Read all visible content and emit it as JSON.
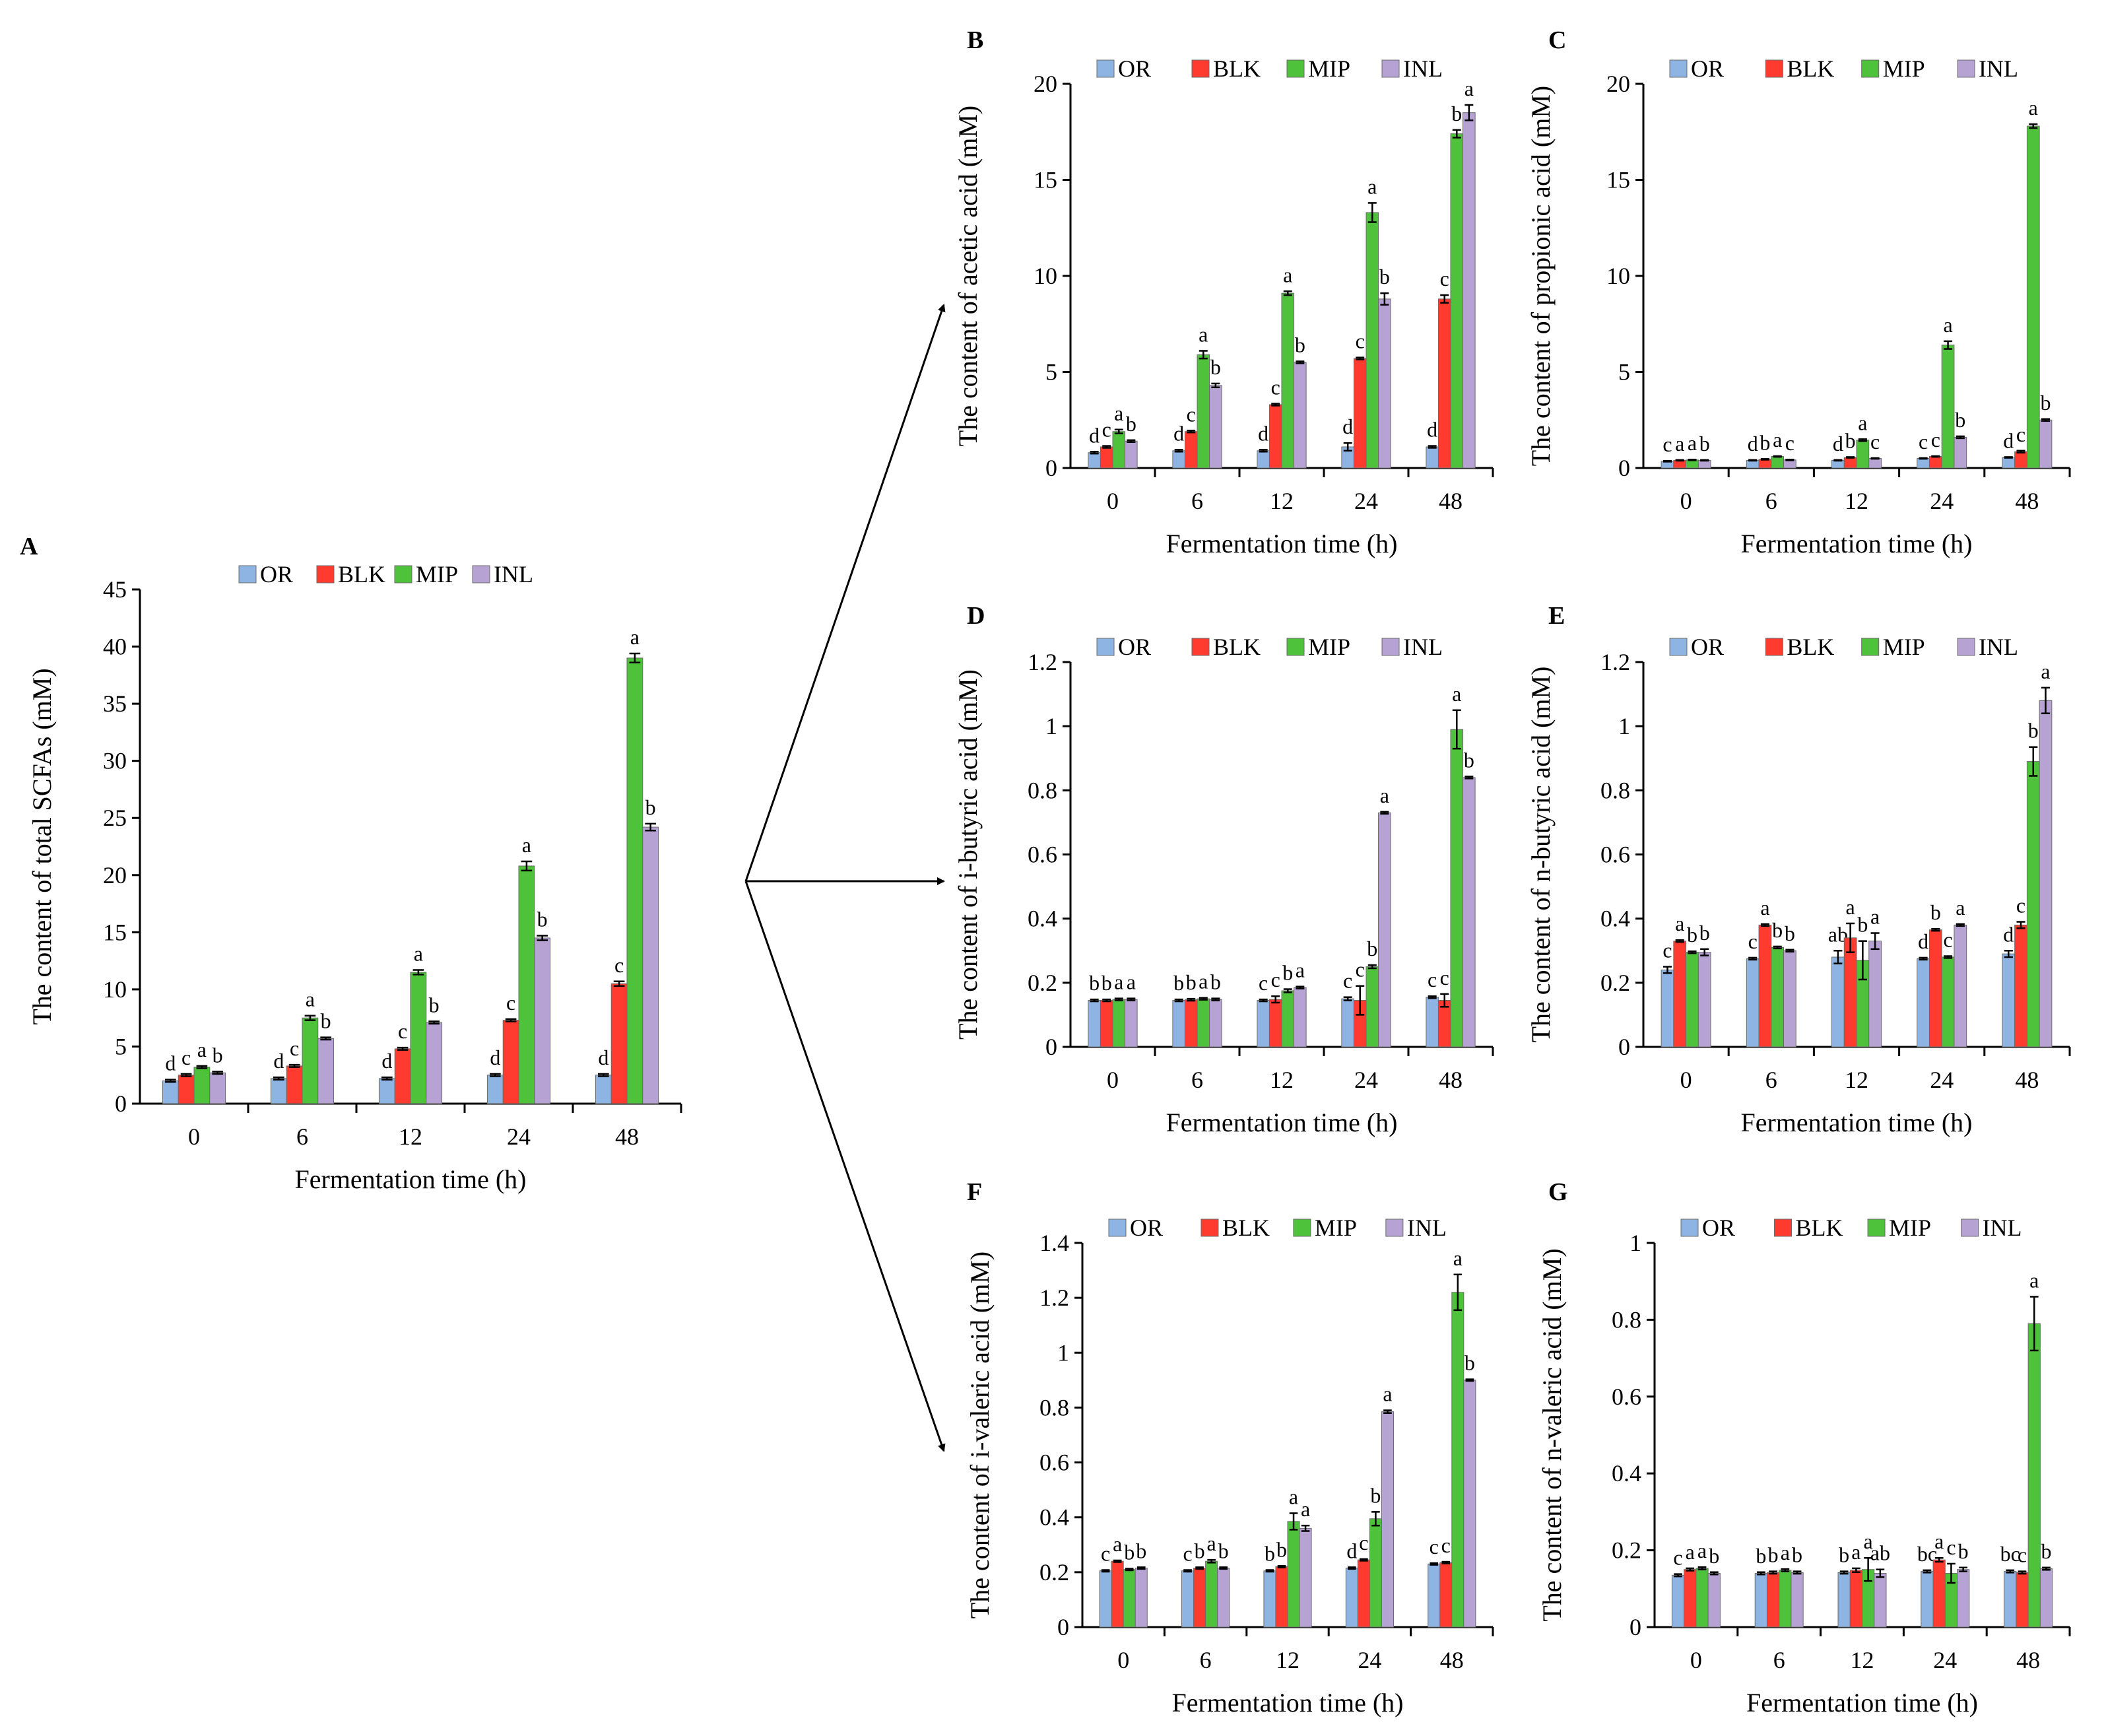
{
  "colors": {
    "OR": "#8db4e2",
    "BLK": "#ff3b30",
    "MIP": "#4ec23a",
    "INL": "#b7a3d3",
    "axis": "#000000"
  },
  "legend": [
    "OR",
    "BLK",
    "MIP",
    "INL"
  ],
  "chart_data": [
    {
      "panel": "A",
      "type": "bar",
      "title": "",
      "xlabel": "Fermentation time (h)",
      "ylabel": "The content of total SCFAs (mM)",
      "categories": [
        "0",
        "6",
        "12",
        "24",
        "48"
      ],
      "yticks": [
        "0",
        "5",
        "10",
        "15",
        "20",
        "25",
        "30",
        "35",
        "40",
        "45"
      ],
      "ylim": [
        0,
        45
      ],
      "series": [
        {
          "name": "OR",
          "values": [
            2.0,
            2.2,
            2.2,
            2.5,
            2.5
          ],
          "errors": [
            0.1,
            0.1,
            0.1,
            0.1,
            0.1
          ],
          "letters": [
            "d",
            "d",
            "d",
            "d",
            "d"
          ]
        },
        {
          "name": "BLK",
          "values": [
            2.5,
            3.3,
            4.8,
            7.3,
            10.5
          ],
          "errors": [
            0.1,
            0.1,
            0.1,
            0.1,
            0.2
          ],
          "letters": [
            "c",
            "c",
            "c",
            "c",
            "c"
          ]
        },
        {
          "name": "MIP",
          "values": [
            3.2,
            7.5,
            11.5,
            20.8,
            39.0
          ],
          "errors": [
            0.1,
            0.2,
            0.2,
            0.4,
            0.4
          ],
          "letters": [
            "a",
            "a",
            "a",
            "a",
            "a"
          ]
        },
        {
          "name": "INL",
          "values": [
            2.7,
            5.7,
            7.1,
            14.5,
            24.2
          ],
          "errors": [
            0.1,
            0.1,
            0.1,
            0.2,
            0.3
          ],
          "letters": [
            "b",
            "b",
            "b",
            "b",
            "b"
          ]
        }
      ]
    },
    {
      "panel": "B",
      "type": "bar",
      "title": "",
      "xlabel": "Fermentation time (h)",
      "ylabel": "The content of acetic acid (mM)",
      "categories": [
        "0",
        "6",
        "12",
        "24",
        "48"
      ],
      "yticks": [
        "0",
        "5",
        "10",
        "15",
        "20"
      ],
      "ylim": [
        0,
        20
      ],
      "series": [
        {
          "name": "OR",
          "values": [
            0.8,
            0.9,
            0.9,
            1.1,
            1.1
          ],
          "errors": [
            0.05,
            0.05,
            0.05,
            0.2,
            0.05
          ],
          "letters": [
            "d",
            "d",
            "d",
            "d",
            "d"
          ]
        },
        {
          "name": "BLK",
          "values": [
            1.1,
            1.9,
            3.3,
            5.7,
            8.8
          ],
          "errors": [
            0.05,
            0.05,
            0.05,
            0.05,
            0.2
          ],
          "letters": [
            "c",
            "c",
            "c",
            "c",
            "c"
          ]
        },
        {
          "name": "MIP",
          "values": [
            1.9,
            5.9,
            9.1,
            13.3,
            17.4
          ],
          "errors": [
            0.1,
            0.2,
            0.1,
            0.5,
            0.2
          ],
          "letters": [
            "a",
            "a",
            "a",
            "a",
            "b"
          ]
        },
        {
          "name": "INL",
          "values": [
            1.4,
            4.3,
            5.5,
            8.8,
            18.5
          ],
          "errors": [
            0.05,
            0.1,
            0.05,
            0.3,
            0.4
          ],
          "letters": [
            "b",
            "b",
            "b",
            "b",
            "a"
          ]
        }
      ]
    },
    {
      "panel": "C",
      "type": "bar",
      "title": "",
      "xlabel": "Fermentation time (h)",
      "ylabel": "The content of propionic acid (mM)",
      "categories": [
        "0",
        "6",
        "12",
        "24",
        "48"
      ],
      "yticks": [
        "0",
        "5",
        "10",
        "15",
        "20"
      ],
      "ylim": [
        0,
        20
      ],
      "series": [
        {
          "name": "OR",
          "values": [
            0.35,
            0.4,
            0.4,
            0.5,
            0.55
          ],
          "errors": [
            0.02,
            0.02,
            0.02,
            0.02,
            0.02
          ],
          "letters": [
            "c",
            "d",
            "d",
            "c",
            "d"
          ]
        },
        {
          "name": "BLK",
          "values": [
            0.4,
            0.45,
            0.55,
            0.6,
            0.85
          ],
          "errors": [
            0.02,
            0.02,
            0.02,
            0.02,
            0.05
          ],
          "letters": [
            "a",
            "b",
            "b",
            "c",
            "c"
          ]
        },
        {
          "name": "MIP",
          "values": [
            0.42,
            0.6,
            1.45,
            6.4,
            17.8
          ],
          "errors": [
            0.02,
            0.02,
            0.05,
            0.2,
            0.1
          ],
          "letters": [
            "a",
            "a",
            "a",
            "a",
            "a"
          ]
        },
        {
          "name": "INL",
          "values": [
            0.4,
            0.42,
            0.5,
            1.6,
            2.5
          ],
          "errors": [
            0.02,
            0.02,
            0.02,
            0.05,
            0.05
          ],
          "letters": [
            "b",
            "c",
            "c",
            "b",
            "b"
          ]
        }
      ]
    },
    {
      "panel": "D",
      "type": "bar",
      "title": "",
      "xlabel": "Fermentation time (h)",
      "ylabel": "The content of i-butyric acid (mM)",
      "categories": [
        "0",
        "6",
        "12",
        "24",
        "48"
      ],
      "yticks": [
        "0",
        "0.2",
        "0.4",
        "0.6",
        "0.8",
        "1",
        "1.2"
      ],
      "ylim": [
        0,
        1.2
      ],
      "series": [
        {
          "name": "OR",
          "values": [
            0.145,
            0.145,
            0.145,
            0.15,
            0.155
          ],
          "errors": [
            0.003,
            0.003,
            0.003,
            0.005,
            0.003
          ],
          "letters": [
            "b",
            "b",
            "c",
            "c",
            "c"
          ]
        },
        {
          "name": "BLK",
          "values": [
            0.145,
            0.147,
            0.148,
            0.145,
            0.145
          ],
          "errors": [
            0.003,
            0.003,
            0.01,
            0.045,
            0.02
          ],
          "letters": [
            "b",
            "b",
            "c",
            "c",
            "c"
          ]
        },
        {
          "name": "MIP",
          "values": [
            0.148,
            0.15,
            0.175,
            0.25,
            0.99
          ],
          "errors": [
            0.003,
            0.003,
            0.005,
            0.005,
            0.06
          ],
          "letters": [
            "a",
            "a",
            "b",
            "b",
            "a"
          ]
        },
        {
          "name": "INL",
          "values": [
            0.148,
            0.148,
            0.185,
            0.73,
            0.84
          ],
          "errors": [
            0.003,
            0.003,
            0.003,
            0.003,
            0.003
          ],
          "letters": [
            "a",
            "b",
            "a",
            "a",
            "b"
          ]
        }
      ]
    },
    {
      "panel": "E",
      "type": "bar",
      "title": "",
      "xlabel": "Fermentation time (h)",
      "ylabel": "The content of n-butyric acid (mM)",
      "categories": [
        "0",
        "6",
        "12",
        "24",
        "48"
      ],
      "yticks": [
        "0",
        "0.2",
        "0.4",
        "0.6",
        "0.8",
        "1",
        "1.2"
      ],
      "ylim": [
        0,
        1.2
      ],
      "series": [
        {
          "name": "OR",
          "values": [
            0.24,
            0.275,
            0.28,
            0.275,
            0.29
          ],
          "errors": [
            0.01,
            0.003,
            0.02,
            0.003,
            0.01
          ],
          "letters": [
            "c",
            "c",
            "ab",
            "d",
            "d"
          ]
        },
        {
          "name": "BLK",
          "values": [
            0.33,
            0.38,
            0.34,
            0.365,
            0.38
          ],
          "errors": [
            0.003,
            0.003,
            0.045,
            0.003,
            0.01
          ],
          "letters": [
            "a",
            "a",
            "a",
            "b",
            "c"
          ]
        },
        {
          "name": "MIP",
          "values": [
            0.295,
            0.31,
            0.27,
            0.28,
            0.89
          ],
          "errors": [
            0.003,
            0.003,
            0.06,
            0.003,
            0.045
          ],
          "letters": [
            "b",
            "b",
            "b",
            "c",
            "b"
          ]
        },
        {
          "name": "INL",
          "values": [
            0.295,
            0.3,
            0.33,
            0.38,
            1.08
          ],
          "errors": [
            0.01,
            0.003,
            0.025,
            0.003,
            0.04
          ],
          "letters": [
            "b",
            "b",
            "a",
            "a",
            "a"
          ]
        }
      ]
    },
    {
      "panel": "F",
      "type": "bar",
      "title": "",
      "xlabel": "Fermentation time (h)",
      "ylabel": "The content of i-valeric acid (mM)",
      "categories": [
        "0",
        "6",
        "12",
        "24",
        "48"
      ],
      "yticks": [
        "0",
        "0.2",
        "0.4",
        "0.6",
        "0.8",
        "1",
        "1.2",
        "1.4"
      ],
      "ylim": [
        0,
        1.4
      ],
      "series": [
        {
          "name": "OR",
          "values": [
            0.205,
            0.205,
            0.205,
            0.215,
            0.23
          ],
          "errors": [
            0.003,
            0.003,
            0.003,
            0.003,
            0.003
          ],
          "letters": [
            "c",
            "c",
            "b",
            "d",
            "c"
          ]
        },
        {
          "name": "BLK",
          "values": [
            0.24,
            0.215,
            0.22,
            0.245,
            0.235
          ],
          "errors": [
            0.003,
            0.003,
            0.003,
            0.003,
            0.003
          ],
          "letters": [
            "a",
            "b",
            "b",
            "c",
            "c"
          ]
        },
        {
          "name": "MIP",
          "values": [
            0.21,
            0.24,
            0.385,
            0.395,
            1.22
          ],
          "errors": [
            0.003,
            0.005,
            0.03,
            0.025,
            0.065
          ],
          "letters": [
            "b",
            "a",
            "a",
            "b",
            "a"
          ]
        },
        {
          "name": "INL",
          "values": [
            0.215,
            0.215,
            0.36,
            0.785,
            0.9
          ],
          "errors": [
            0.003,
            0.003,
            0.01,
            0.005,
            0.003
          ],
          "letters": [
            "b",
            "b",
            "a",
            "a",
            "b"
          ]
        }
      ]
    },
    {
      "panel": "G",
      "type": "bar",
      "title": "",
      "xlabel": "Fermentation time (h)",
      "ylabel": "The content of n-valeric acid (mM)",
      "categories": [
        "0",
        "6",
        "12",
        "24",
        "48"
      ],
      "yticks": [
        "0",
        "0.2",
        "0.4",
        "0.6",
        "0.8",
        "1"
      ],
      "ylim": [
        0,
        1
      ],
      "series": [
        {
          "name": "OR",
          "values": [
            0.135,
            0.14,
            0.142,
            0.145,
            0.145
          ],
          "errors": [
            0.003,
            0.003,
            0.003,
            0.003,
            0.003
          ],
          "letters": [
            "c",
            "b",
            "b",
            "bc",
            "bc"
          ]
        },
        {
          "name": "BLK",
          "values": [
            0.15,
            0.142,
            0.148,
            0.175,
            0.142
          ],
          "errors": [
            0.003,
            0.003,
            0.005,
            0.005,
            0.003
          ],
          "letters": [
            "a",
            "b",
            "a",
            "a",
            "c"
          ]
        },
        {
          "name": "MIP",
          "values": [
            0.153,
            0.148,
            0.15,
            0.14,
            0.79
          ],
          "errors": [
            0.003,
            0.003,
            0.03,
            0.025,
            0.07
          ],
          "letters": [
            "a",
            "a",
            "a",
            "c",
            "a"
          ]
        },
        {
          "name": "INL",
          "values": [
            0.14,
            0.142,
            0.14,
            0.15,
            0.152
          ],
          "errors": [
            0.003,
            0.003,
            0.01,
            0.005,
            0.003
          ],
          "letters": [
            "b",
            "b",
            "ab",
            "b",
            "b"
          ]
        }
      ]
    }
  ]
}
